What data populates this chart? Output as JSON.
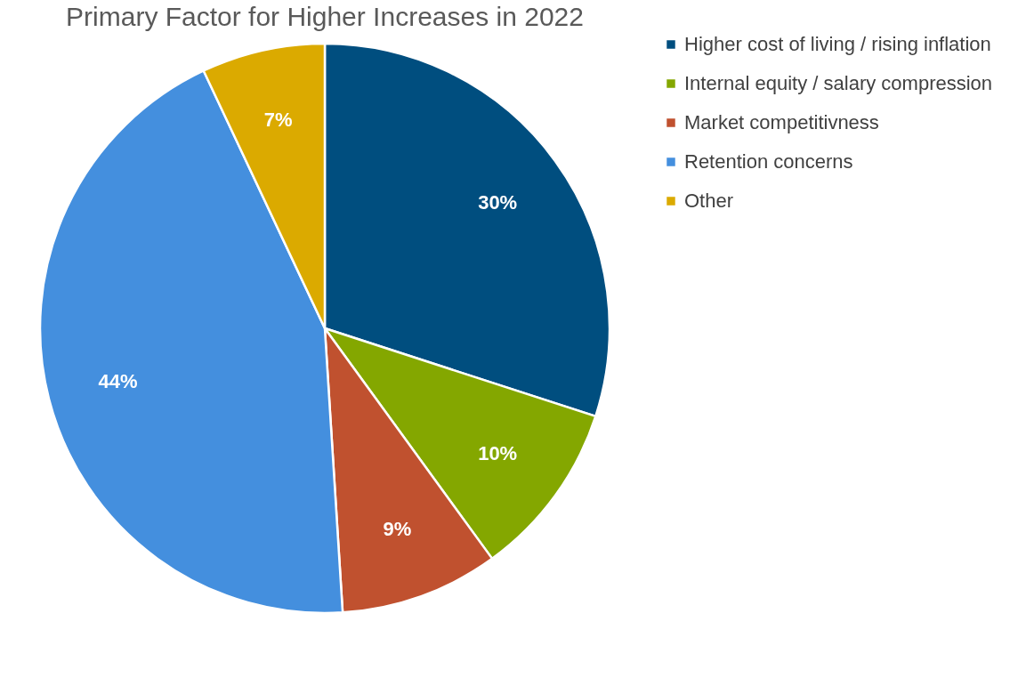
{
  "chart_data": {
    "type": "pie",
    "title": "Primary Factor for Higher Increases in 2022",
    "categories": [
      "Higher cost of living / rising inflation",
      "Internal equity / salary compression",
      "Market competitivness",
      "Retention concerns",
      "Other"
    ],
    "values": [
      30,
      10,
      9,
      44,
      7
    ],
    "colors": [
      "#004e7f",
      "#84a700",
      "#c0512f",
      "#448fde",
      "#dbaa00"
    ],
    "value_labels": [
      "30%",
      "10%",
      "9%",
      "44%",
      "7%"
    ],
    "legend": "right"
  }
}
